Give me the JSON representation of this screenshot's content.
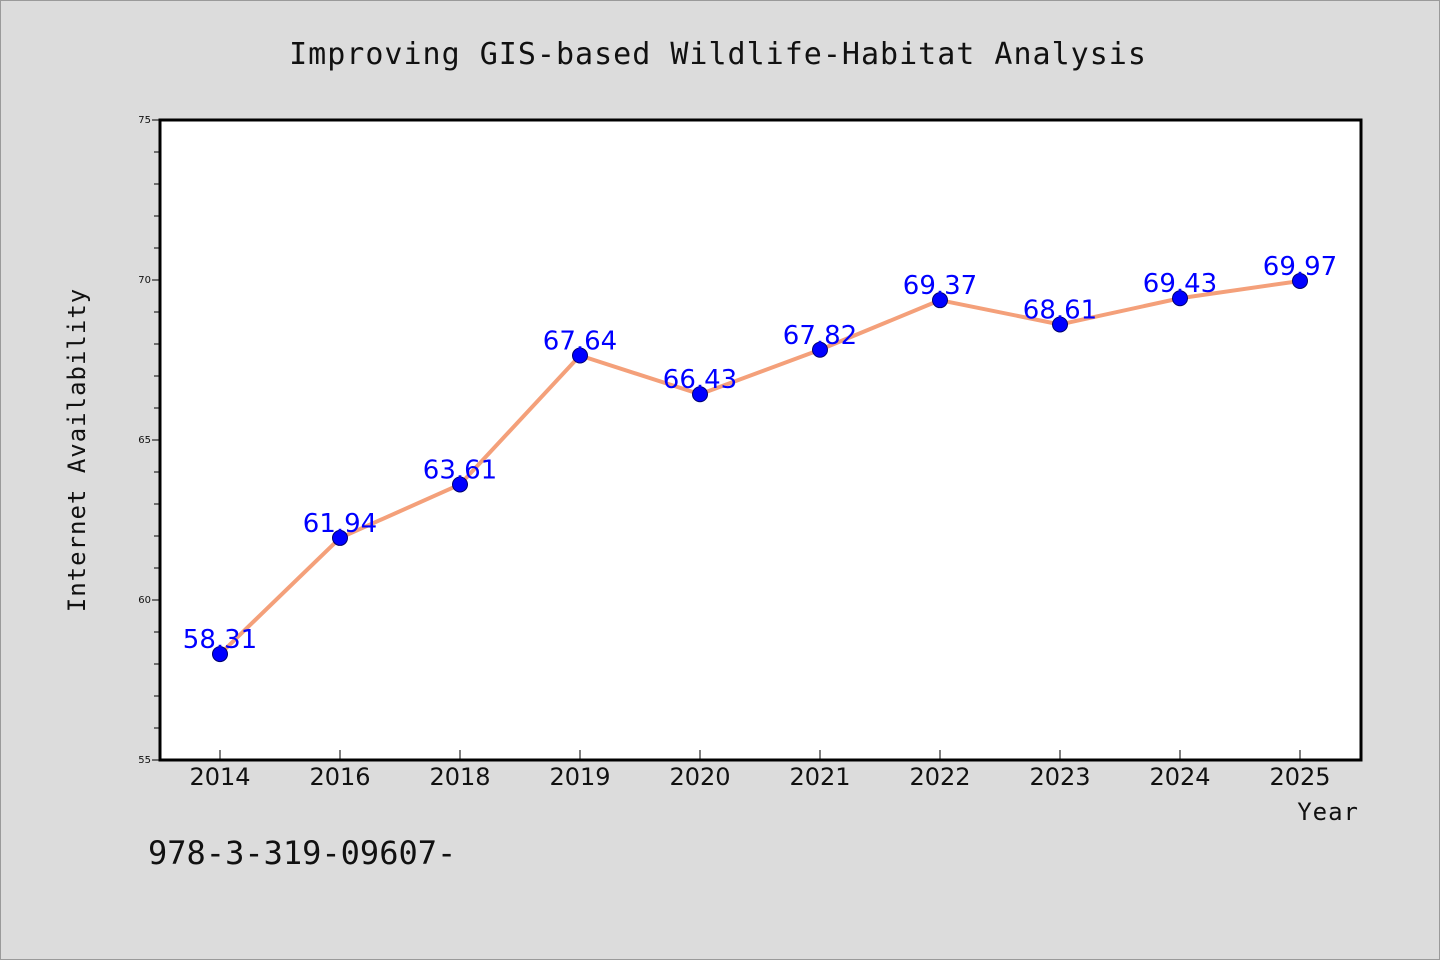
{
  "chart_data": {
    "type": "line",
    "title": "Improving GIS-based Wildlife-Habitat Analysis",
    "xlabel": "Year",
    "ylabel": "Internet Availability",
    "categories": [
      "2014",
      "2016",
      "2018",
      "2019",
      "2020",
      "2021",
      "2022",
      "2023",
      "2024",
      "2025"
    ],
    "series": [
      {
        "values": [
          58.31,
          61.94,
          63.61,
          67.64,
          66.43,
          67.82,
          69.37,
          68.61,
          69.43,
          69.97
        ],
        "line_color": "#f4a07a",
        "marker_color": "#0000ff"
      }
    ],
    "data_labels": [
      "58.31",
      "61.94",
      "63.61",
      "67.64",
      "66.43",
      "67.82",
      "69.37",
      "68.61",
      "69.43",
      "69.97"
    ],
    "ylim": [
      55,
      75
    ],
    "yticks": [
      "55",
      "60",
      "65",
      "70",
      "75"
    ],
    "grid": false,
    "legend": false
  },
  "footer_text": "978-3-319-09607-",
  "colors": {
    "background": "#dcdcdc",
    "plot_background": "#ffffff",
    "label_color": "#0000ff"
  }
}
